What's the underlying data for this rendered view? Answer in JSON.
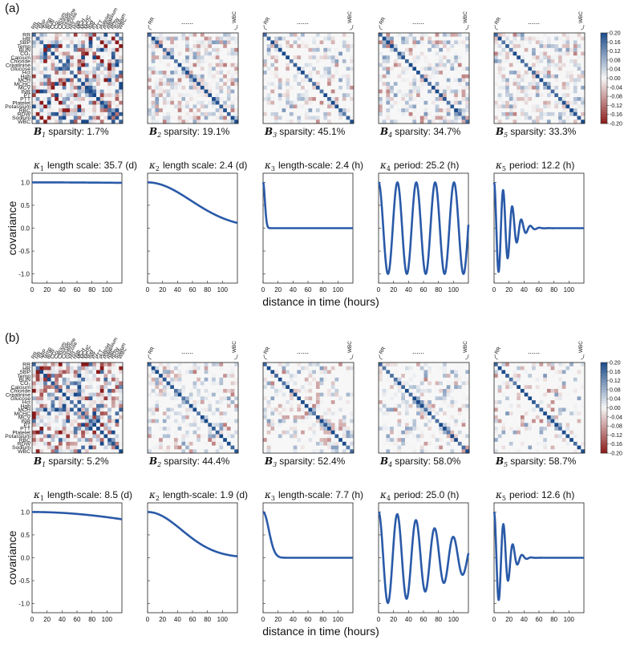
{
  "chart_data": {
    "type": "heatmap",
    "variables": [
      "RR",
      "HR",
      "SBP",
      "Temp",
      "BUN",
      "CO₂",
      "Calcium",
      "Chloride",
      "Creatinine",
      "Glucose",
      "Hct",
      "Hgb",
      "MCH",
      "MCHC",
      "MCV",
      "INR",
      "PT",
      "PTT",
      "Platelet",
      "Potassium",
      "RBC",
      "RDW",
      "Sodium",
      "WBC"
    ],
    "colorbar": {
      "min": -0.2,
      "max": 0.2,
      "ticks": [
        "0.20",
        "0.16",
        "0.12",
        "0.08",
        "0.04",
        "0.00",
        "-0.04",
        "-0.08",
        "-0.12",
        "-0.16",
        "-0.20"
      ],
      "colors": {
        "pos": "#1a4a8a",
        "neg": "#8b1a1a",
        "zero": "#f7f7f7"
      }
    },
    "top_dots": "......",
    "wbc_label": "WBC",
    "rr_label": "RR",
    "xlabel": "distance in time (hours)",
    "ylabel": "covariance",
    "xticks": [
      0,
      20,
      40,
      60,
      80,
      100
    ],
    "xlim": [
      0,
      120
    ],
    "yticks": [
      "1.0",
      "0.5",
      "0.0",
      "-0.5",
      "-1.0"
    ],
    "ylim": [
      -1.2,
      1.2
    ],
    "line_color": "#2a5aa8",
    "panels": [
      {
        "tag": "(a)",
        "matrices": [
          {
            "label_sym": "B",
            "label_sub": "1",
            "text": "sparsity: 1.7%",
            "density": 0.98,
            "seed": 11
          },
          {
            "label_sym": "B",
            "label_sub": "2",
            "text": "sparsity: 19.1%",
            "density": 0.8,
            "seed": 23
          },
          {
            "label_sym": "B",
            "label_sub": "3",
            "text": "sparsity: 45.1%",
            "density": 0.55,
            "seed": 37
          },
          {
            "label_sym": "B",
            "label_sub": "4",
            "text": "sparsity: 34.7%",
            "density": 0.65,
            "seed": 41
          },
          {
            "label_sym": "B",
            "label_sub": "5",
            "text": "sparsity: 33.3%",
            "density": 0.66,
            "seed": 53
          }
        ],
        "kernels": [
          {
            "label_sym": "κ",
            "label_sub": "1",
            "text": "length scale: 35.7 (d)",
            "kind": "se",
            "scale": 856.8
          },
          {
            "label_sym": "κ",
            "label_sub": "2",
            "text": "length scale: 2.4 (d)",
            "kind": "se",
            "scale": 57.6
          },
          {
            "label_sym": "κ",
            "label_sub": "3",
            "text": "length-scale: 2.4 (h)",
            "kind": "se",
            "scale": 2.4
          },
          {
            "label_sym": "κ",
            "label_sub": "4",
            "text": "period: 25.2 (h)",
            "kind": "periodic",
            "period": 25.2,
            "decay": 10000
          },
          {
            "label_sym": "κ",
            "label_sub": "5",
            "text": "period: 12.2 (h)",
            "kind": "periodic",
            "period": 12.2,
            "decay": 20
          }
        ]
      },
      {
        "tag": "(b)",
        "matrices": [
          {
            "label_sym": "B",
            "label_sub": "1",
            "text": "sparsity: 5.2%",
            "density": 0.94,
            "seed": 67
          },
          {
            "label_sym": "B",
            "label_sub": "2",
            "text": "sparsity: 44.4%",
            "density": 0.56,
            "seed": 71
          },
          {
            "label_sym": "B",
            "label_sub": "3",
            "text": "sparsity: 52.4%",
            "density": 0.48,
            "seed": 83
          },
          {
            "label_sym": "B",
            "label_sub": "4",
            "text": "sparsity: 58.0%",
            "density": 0.42,
            "seed": 97
          },
          {
            "label_sym": "B",
            "label_sub": "5",
            "text": "sparsity: 58.7%",
            "density": 0.41,
            "seed": 101
          }
        ],
        "kernels": [
          {
            "label_sym": "κ",
            "label_sub": "1",
            "text": "length-scale: 8.5 (d)",
            "kind": "se",
            "scale": 204
          },
          {
            "label_sym": "κ",
            "label_sub": "2",
            "text": "length-scale: 1.9 (d)",
            "kind": "se",
            "scale": 45.6
          },
          {
            "label_sym": "κ",
            "label_sub": "3",
            "text": "length-scale: 7.7 (h)",
            "kind": "se",
            "scale": 7.7
          },
          {
            "label_sym": "κ",
            "label_sub": "4",
            "text": "period: 25.0 (h)",
            "kind": "periodic",
            "period": 25.0,
            "decay": 80
          },
          {
            "label_sym": "κ",
            "label_sub": "5",
            "text": "period: 12.6 (h)",
            "kind": "periodic",
            "period": 12.6,
            "decay": 16
          }
        ]
      }
    ]
  }
}
